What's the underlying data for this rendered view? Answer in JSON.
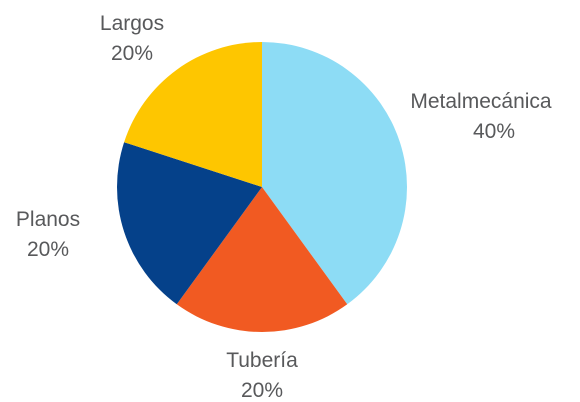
{
  "chart_data": {
    "type": "pie",
    "start_angle_deg": 0,
    "direction": "clockwise",
    "slices": [
      {
        "label": "Metalmecánica",
        "value": 40,
        "value_label": "40%",
        "color": "#8ddcf5"
      },
      {
        "label": "Tubería",
        "value": 20,
        "value_label": "20%",
        "color": "#f15a22"
      },
      {
        "label": "Planos",
        "value": 20,
        "value_label": "20%",
        "color": "#05418a"
      },
      {
        "label": "Largos",
        "value": 20,
        "value_label": "20%",
        "color": "#fec600"
      }
    ]
  }
}
